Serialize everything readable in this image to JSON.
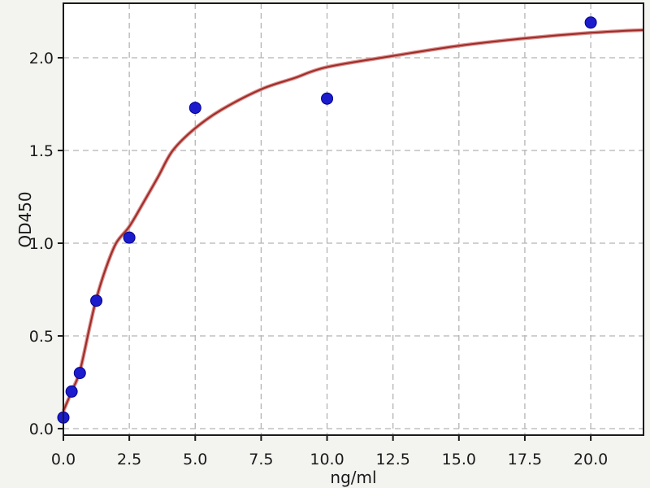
{
  "figure": {
    "background": "#f3f3f0",
    "plot_background": "#ffffff",
    "grid_color": "#b4b4b4",
    "axis_color": "#1a1a1a",
    "tick_color": "#1a1a1a"
  },
  "chart_data": {
    "type": "scatter",
    "title": "",
    "xlabel": "ng/ml",
    "ylabel": "OD450",
    "xlim": [
      0,
      22.0
    ],
    "ylim": [
      -0.035,
      2.294
    ],
    "grid": true,
    "grid_style": "dashed",
    "legend": "none",
    "x_ticks": {
      "values": [
        0,
        2.5,
        5,
        7.5,
        10,
        12.5,
        15,
        17.5,
        20
      ],
      "labels": [
        "0.0",
        "2.5",
        "5.0",
        "7.5",
        "10.0",
        "12.5",
        "15.0",
        "17.5",
        "20.0"
      ]
    },
    "y_ticks": {
      "values": [
        0,
        0.5,
        1,
        1.5,
        2
      ],
      "labels": [
        "0.0",
        "0.5",
        "1.0",
        "1.5",
        "2.0"
      ]
    },
    "series": [
      {
        "name": "standard-points",
        "type": "scatter",
        "marker_color": "#1c1ccd",
        "marker_edge_color": "#000090",
        "marker_radius": 7,
        "x": [
          0,
          0.312,
          0.625,
          1.25,
          2.5,
          5,
          10,
          20
        ],
        "y": [
          0.06,
          0.2,
          0.3,
          0.69,
          1.03,
          1.73,
          1.78,
          2.19
        ]
      },
      {
        "name": "fit-curve",
        "type": "line",
        "color": "#9e2b28",
        "halo_color": "#d98f8c",
        "x": [
          0,
          0.312,
          0.625,
          1.0,
          1.25,
          1.6,
          2.0,
          2.5,
          3.0,
          3.6,
          4.15,
          5.0,
          6.0,
          7.5,
          8.75,
          10.0,
          12.5,
          15.0,
          17.5,
          20.0,
          22.0
        ],
        "y": [
          0.095,
          0.2,
          0.31,
          0.55,
          0.7,
          0.86,
          1.0,
          1.09,
          1.21,
          1.36,
          1.5,
          1.62,
          1.72,
          1.83,
          1.89,
          1.95,
          2.01,
          2.065,
          2.105,
          2.135,
          2.15
        ]
      }
    ]
  }
}
